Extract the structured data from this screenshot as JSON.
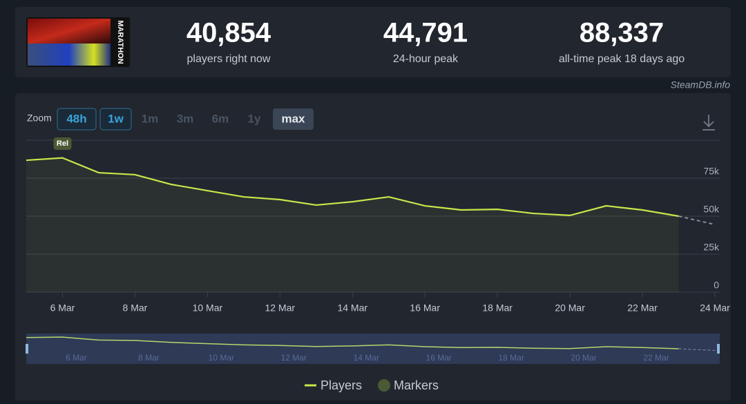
{
  "header": {
    "logo_text": "MARATHON",
    "stats": [
      {
        "value": "40,854",
        "label": "players right now"
      },
      {
        "value": "44,791",
        "label": "24-hour peak"
      },
      {
        "value": "88,337",
        "label": "all-time peak 18 days ago"
      }
    ],
    "source": "SteamDB.info"
  },
  "zoom": {
    "label": "Zoom",
    "buttons": [
      "48h",
      "1w",
      "1m",
      "3m",
      "6m",
      "1y",
      "max"
    ]
  },
  "chart_data": {
    "type": "line",
    "x": [
      5,
      6,
      7,
      8,
      9,
      10,
      11,
      12,
      13,
      14,
      15,
      16,
      17,
      18,
      19,
      20,
      21,
      22,
      23
    ],
    "series": [
      {
        "name": "Players",
        "color": "#c5e84a",
        "values": [
          86800,
          88337,
          78600,
          77300,
          70900,
          66800,
          62700,
          60900,
          57300,
          59500,
          62700,
          56800,
          54100,
          54500,
          51800,
          50500,
          56800,
          54100,
          50000
        ]
      }
    ],
    "projection": {
      "x": [
        23,
        24
      ],
      "values": [
        50000,
        44500
      ]
    },
    "markers": {
      "name": "Markers",
      "color": "#4a5a35",
      "items": [
        {
          "x": 6,
          "label": "Rel"
        }
      ]
    },
    "xlim": [
      5,
      24
    ],
    "xticks": [
      {
        "value": 6,
        "label": "6 Mar"
      },
      {
        "value": 8,
        "label": "8 Mar"
      },
      {
        "value": 10,
        "label": "10 Mar"
      },
      {
        "value": 12,
        "label": "12 Mar"
      },
      {
        "value": 14,
        "label": "14 Mar"
      },
      {
        "value": 16,
        "label": "16 Mar"
      },
      {
        "value": 18,
        "label": "18 Mar"
      },
      {
        "value": 20,
        "label": "20 Mar"
      },
      {
        "value": 22,
        "label": "22 Mar"
      },
      {
        "value": 24,
        "label": "24 Mar"
      }
    ],
    "ylim": [
      0,
      100000
    ],
    "yticks": [
      0,
      {
        "value": 25000,
        "label": "25k"
      },
      {
        "value": 50000,
        "label": "50k"
      },
      {
        "value": 75000,
        "label": "75k"
      }
    ],
    "grid": true
  }
}
